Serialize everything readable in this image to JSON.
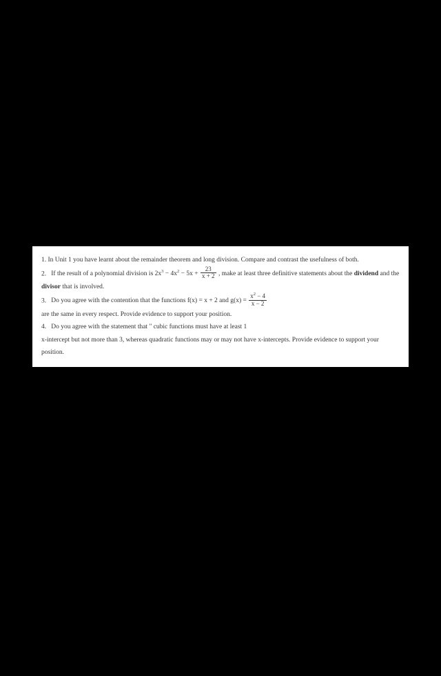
{
  "background_color": "#000000",
  "document_background": "#ffffff",
  "text_color": "#333333",
  "font_family": "Georgia, serif",
  "font_size": 9.5,
  "questions": {
    "q1": {
      "number": "1.",
      "text_part1": "In Unit 1 you have learnt about the remainder theorem and long division. Compare and contrast the usefulness of both."
    },
    "q2": {
      "number": "2.",
      "text_part1": "If the result of a polynomial division is 2x",
      "exp1": "3",
      "text_part2": " − 4x",
      "exp2": "2",
      "text_part3": " − 5x + ",
      "frac_num": "23",
      "frac_den": "x + 2",
      "text_part4": " , make at least three definitive statements about the ",
      "bold1": "dividend",
      "text_part5": " and the ",
      "bold2": "divisor",
      "text_part6": " that is involved."
    },
    "q3": {
      "number": "3.",
      "text_part1": "Do you agree with the contention that the functions f(x) = x + 2  and  g(x) = ",
      "frac_num_p1": "x",
      "frac_num_exp": "2",
      "frac_num_p2": " − 4",
      "frac_den": "x − 2",
      "text_part2": "are the same in every respect.  Provide evidence to  support your position."
    },
    "q4": {
      "number": "4.",
      "text_part1": "Do you  agree with the statement that \" cubic functions must have at least 1",
      "text_part2": "x-intercept but not more than 3, whereas quadratic functions may or may not have x-intercepts. Provide evidence to support your position."
    }
  }
}
